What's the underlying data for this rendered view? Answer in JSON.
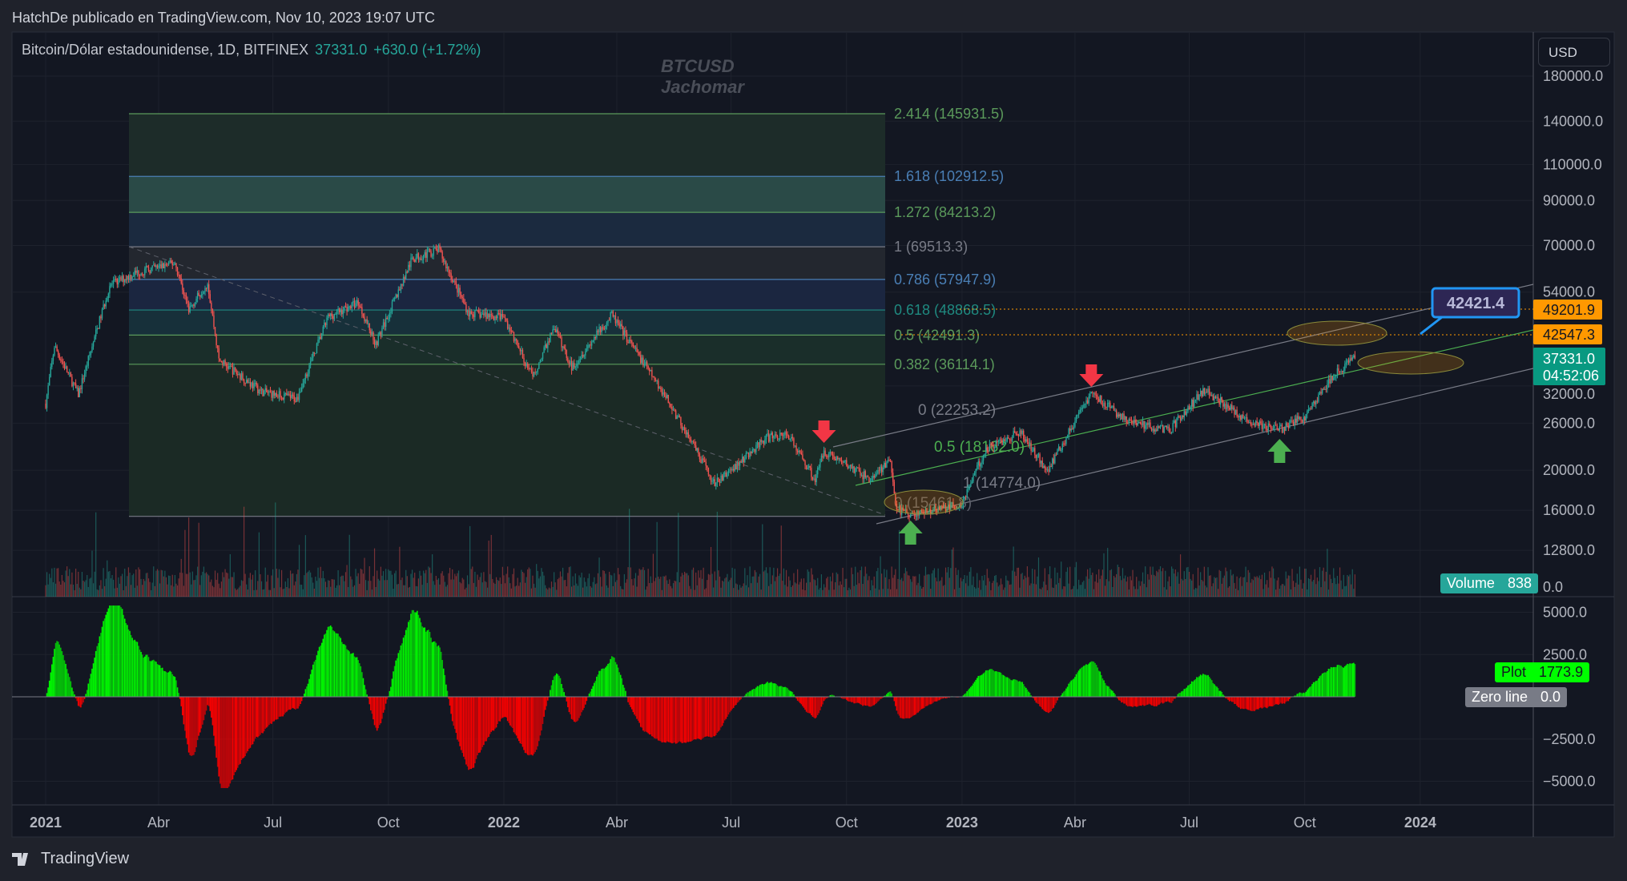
{
  "header": {
    "published": "HatchDe publicado en TradingView.com, Nov 10, 2023 19:07 UTC"
  },
  "legend": {
    "symbol": "Bitcoin/Dólar estadounidense, 1D, BITFINEX",
    "price": "37331.0",
    "change": "+630.0 (+1.72%)"
  },
  "watermark": {
    "line1": "BTCUSD",
    "line2": "Jachomar"
  },
  "currency": "USD",
  "footer": {
    "brand": "TradingView"
  },
  "colors": {
    "up": "#26a69a",
    "down": "#ef5350",
    "osc_up": "#00ff00",
    "osc_down": "#ff0000",
    "accent_orange": "#ff9800",
    "callout_blue": "#2196f3"
  },
  "chart_data": {
    "type": "candlestick",
    "yscale": "log",
    "grid": true,
    "price_ticks": [
      "180000.0",
      "140000.0",
      "110000.0",
      "90000.0",
      "70000.0",
      "54000.0",
      "32000.0",
      "26000.0",
      "20000.0",
      "16000.0",
      "12800.0"
    ],
    "price_tick_values": [
      180000,
      140000,
      110000,
      90000,
      70000,
      54000,
      32000,
      26000,
      20000,
      16000,
      12800
    ],
    "time_ticks": [
      {
        "label": "2021",
        "date": "2021-01-01",
        "bold": true
      },
      {
        "label": "Abr",
        "date": "2021-04-01"
      },
      {
        "label": "Jul",
        "date": "2021-07-01"
      },
      {
        "label": "Oct",
        "date": "2021-10-01"
      },
      {
        "label": "2022",
        "date": "2022-01-01",
        "bold": true
      },
      {
        "label": "Abr",
        "date": "2022-04-01"
      },
      {
        "label": "Jul",
        "date": "2022-07-01"
      },
      {
        "label": "Oct",
        "date": "2022-10-01"
      },
      {
        "label": "2023",
        "date": "2023-01-01",
        "bold": true
      },
      {
        "label": "Abr",
        "date": "2023-04-01"
      },
      {
        "label": "Jul",
        "date": "2023-07-01"
      },
      {
        "label": "Oct",
        "date": "2023-10-01"
      },
      {
        "label": "2024",
        "date": "2024-01-01",
        "bold": true
      }
    ],
    "price_path": [
      [
        "2021-01-01",
        29000
      ],
      [
        "2021-01-08",
        40000
      ],
      [
        "2021-01-27",
        30500
      ],
      [
        "2021-02-21",
        56000
      ],
      [
        "2021-03-13",
        60000
      ],
      [
        "2021-04-14",
        63500
      ],
      [
        "2021-04-25",
        49000
      ],
      [
        "2021-05-10",
        57000
      ],
      [
        "2021-05-19",
        37000
      ],
      [
        "2021-06-22",
        31000
      ],
      [
        "2021-07-20",
        29800
      ],
      [
        "2021-08-14",
        47000
      ],
      [
        "2021-09-07",
        51000
      ],
      [
        "2021-09-21",
        40500
      ],
      [
        "2021-10-20",
        65000
      ],
      [
        "2021-11-10",
        68500
      ],
      [
        "2021-12-04",
        48000
      ],
      [
        "2022-01-01",
        47000
      ],
      [
        "2022-01-24",
        33500
      ],
      [
        "2022-02-10",
        44500
      ],
      [
        "2022-02-24",
        35500
      ],
      [
        "2022-03-28",
        47500
      ],
      [
        "2022-05-09",
        30500
      ],
      [
        "2022-06-18",
        18500
      ],
      [
        "2022-07-30",
        24000
      ],
      [
        "2022-08-15",
        24500
      ],
      [
        "2022-09-06",
        19000
      ],
      [
        "2022-09-13",
        22300
      ],
      [
        "2022-10-20",
        19000
      ],
      [
        "2022-11-05",
        21200
      ],
      [
        "2022-11-09",
        16200
      ],
      [
        "2022-11-21",
        15600
      ],
      [
        "2022-12-31",
        16500
      ],
      [
        "2023-01-20",
        22500
      ],
      [
        "2023-02-16",
        24800
      ],
      [
        "2023-03-10",
        20000
      ],
      [
        "2023-04-14",
        30800
      ],
      [
        "2023-05-12",
        26300
      ],
      [
        "2023-06-15",
        25000
      ],
      [
        "2023-07-13",
        31400
      ],
      [
        "2023-08-18",
        26100
      ],
      [
        "2023-09-11",
        25100
      ],
      [
        "2023-10-01",
        27000
      ],
      [
        "2023-10-24",
        34000
      ],
      [
        "2023-11-10",
        37331
      ]
    ],
    "fib_retracement": [
      {
        "level": "2.414 (145931.5)",
        "price": 145931.5,
        "color": "#5b9a5b",
        "fill": "#1d2c29"
      },
      {
        "level": "1.618 (102912.5)",
        "price": 102912.5,
        "color": "#4a7fb5",
        "fill": "#2a4a47"
      },
      {
        "level": "1.272 (84213.2)",
        "price": 84213.2,
        "color": "#5b9a5b",
        "fill": "#1b2a3f"
      },
      {
        "level": "1 (69513.3)",
        "price": 69513.3,
        "color": "#787b86",
        "fill": "#23272f"
      },
      {
        "level": "0.786 (57947.9)",
        "price": 57947.9,
        "color": "#4a7fb5",
        "fill": "#1b2640"
      },
      {
        "level": "0.618 (48868.5)",
        "price": 48868.5,
        "color": "#1f8a80",
        "fill": "#17303a"
      },
      {
        "level": "0.5 (42491.3)",
        "price": 42491.3,
        "color": "#5b9a5b",
        "fill": "#1a2e2a"
      },
      {
        "level": "0.382 (36114.1)",
        "price": 36114.1,
        "color": "#5b9a5b",
        "fill": "#1b2a25"
      },
      {
        "level": "",
        "price": 15469.8,
        "color": "#787b86",
        "fill": ""
      }
    ],
    "fib_channel": [
      {
        "label": "0 (22253.2)",
        "color": "#787b86"
      },
      {
        "label": "0.5 (18162.0)",
        "color": "#4caf50"
      },
      {
        "label": "1 (14774.0)",
        "color": "#787b86"
      }
    ],
    "channel_low_label": "0 (15461.8)",
    "price_labels": {
      "level_a": "49201.9",
      "level_b": "42547.3",
      "last_price": "37331.0",
      "countdown": "04:52:06"
    },
    "callout": "42421.4",
    "volume": {
      "name": "Volume",
      "value": "838"
    },
    "oscillator": {
      "ticks": [
        "5000.0",
        "2500.0",
        "−2500.0",
        "−5000.0"
      ],
      "tick_values": [
        5000,
        2500,
        -2500,
        -5000
      ],
      "plot_name": "Plot",
      "plot_value": "1773.9",
      "zero_name": "Zero line",
      "zero_value": "0.0"
    },
    "markers": [
      {
        "type": "sell-arrow",
        "date": "2022-09-13"
      },
      {
        "type": "sell-arrow",
        "date": "2023-04-14"
      },
      {
        "type": "buy-arrow",
        "date": "2022-11-21"
      },
      {
        "type": "buy-arrow",
        "date": "2023-09-11"
      }
    ]
  }
}
